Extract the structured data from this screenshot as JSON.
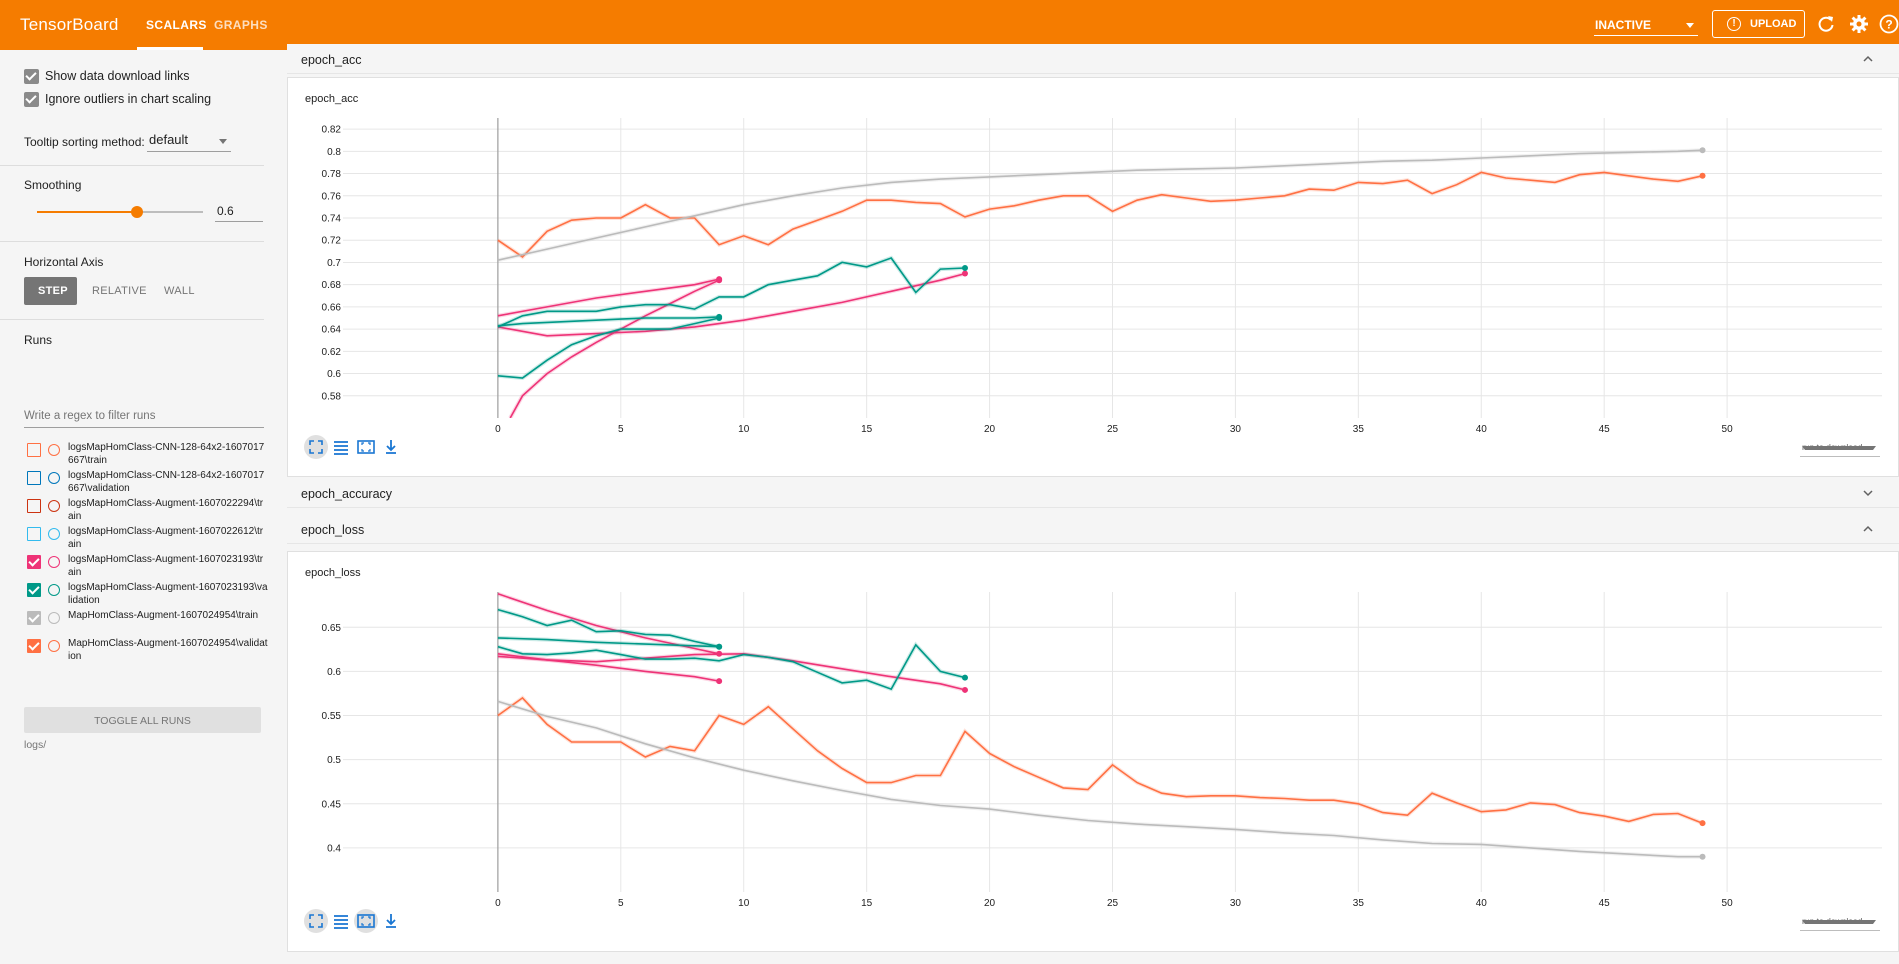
{
  "app": {
    "brand": "TensorBoard",
    "tabs": [
      {
        "label": "SCALARS",
        "active": true
      },
      {
        "label": "GRAPHS",
        "active": false
      }
    ],
    "status": "INACTIVE",
    "upload_label": "UPLOAD",
    "accent_color": "#f57c00",
    "icons": [
      "refresh-icon",
      "settings-icon",
      "help-icon"
    ]
  },
  "sidebar": {
    "show_download_links": {
      "label": "Show data download links",
      "checked": true
    },
    "ignore_outliers": {
      "label": "Ignore outliers in chart scaling",
      "checked": true
    },
    "tooltip_sorting": {
      "label": "Tooltip sorting method:",
      "value": "default"
    },
    "smoothing": {
      "title": "Smoothing",
      "value": "0.6",
      "fraction": 0.6
    },
    "horizontal_axis": {
      "title": "Horizontal Axis",
      "options": [
        "STEP",
        "RELATIVE",
        "WALL"
      ],
      "selected": "STEP"
    },
    "runs": {
      "title": "Runs",
      "filter_placeholder": "Write a regex to filter runs",
      "items": [
        {
          "name": "logsMapHomClass-CNN-128-64x2-1607017667\\train",
          "checked": false,
          "color": "#ff7043"
        },
        {
          "name": "logsMapHomClass-CNN-128-64x2-1607017667\\validation",
          "checked": false,
          "color": "#0077bb"
        },
        {
          "name": "logsMapHomClass-Augment-1607022294\\train",
          "checked": false,
          "color": "#cc3311"
        },
        {
          "name": "logsMapHomClass-Augment-1607022612\\train",
          "checked": false,
          "color": "#33bbee"
        },
        {
          "name": "logsMapHomClass-Augment-1607023193\\train",
          "checked": true,
          "color": "#ee3377"
        },
        {
          "name": "logsMapHomClass-Augment-1607023193\\validation",
          "checked": true,
          "color": "#009988"
        },
        {
          "name": "MapHomClass-Augment-1607024954\\train",
          "checked": true,
          "color": "#bbbbbb"
        },
        {
          "name": "MapHomClass-Augment-1607024954\\validation",
          "checked": true,
          "color": "#ff7043"
        }
      ],
      "toggle_all_label": "TOGGLE ALL RUNS",
      "logdir": "logs/"
    }
  },
  "groups": [
    {
      "title": "epoch_acc",
      "expanded": true
    },
    {
      "title": "epoch_accuracy",
      "expanded": false
    },
    {
      "title": "epoch_loss",
      "expanded": true
    }
  ],
  "run_to_download": "run to download",
  "chart_data": [
    {
      "type": "line",
      "title": "epoch_acc",
      "xticks": [
        0,
        5,
        10,
        15,
        20,
        25,
        30,
        35,
        40,
        45,
        50
      ],
      "yticks": [
        0.58,
        0.6,
        0.62,
        0.64,
        0.66,
        0.68,
        0.7,
        0.72,
        0.74,
        0.76,
        0.78,
        0.8,
        0.82
      ],
      "xlim": [
        -6.3,
        56.3
      ],
      "ylim": [
        0.56,
        0.83
      ],
      "series": [
        {
          "color": "#ff7043",
          "x": [
            0,
            1,
            2,
            3,
            4,
            5,
            6,
            7,
            8,
            9,
            10,
            11,
            12,
            13,
            14,
            15,
            16,
            17,
            18,
            19,
            20,
            21,
            22,
            23,
            24,
            25,
            26,
            27,
            28,
            29,
            30,
            31,
            32,
            33,
            34,
            35,
            36,
            37,
            38,
            39,
            40,
            41,
            42,
            43,
            44,
            45,
            46,
            47,
            48,
            49
          ],
          "y": [
            0.72,
            0.705,
            0.728,
            0.738,
            0.74,
            0.74,
            0.752,
            0.74,
            0.74,
            0.716,
            0.724,
            0.716,
            0.73,
            0.738,
            0.746,
            0.756,
            0.756,
            0.754,
            0.753,
            0.741,
            0.748,
            0.751,
            0.756,
            0.76,
            0.76,
            0.746,
            0.756,
            0.761,
            0.758,
            0.755,
            0.756,
            0.758,
            0.76,
            0.766,
            0.765,
            0.772,
            0.771,
            0.774,
            0.762,
            0.77,
            0.781,
            0.776,
            0.774,
            0.772,
            0.779,
            0.781,
            0.778,
            0.775,
            0.773,
            0.778
          ]
        },
        {
          "color": "#bbbbbb",
          "x": [
            0,
            2,
            4,
            6,
            8,
            10,
            12,
            14,
            16,
            18,
            20,
            22,
            24,
            26,
            28,
            30,
            32,
            34,
            36,
            38,
            40,
            42,
            44,
            46,
            48,
            49
          ],
          "y": [
            0.702,
            0.712,
            0.722,
            0.732,
            0.742,
            0.752,
            0.76,
            0.767,
            0.772,
            0.775,
            0.777,
            0.779,
            0.781,
            0.783,
            0.784,
            0.785,
            0.787,
            0.789,
            0.791,
            0.792,
            0.794,
            0.796,
            0.798,
            0.799,
            0.8,
            0.801
          ]
        },
        {
          "color": "#ee3377",
          "x": [
            0,
            2,
            4,
            6,
            8,
            10,
            12,
            14,
            16,
            18,
            19
          ],
          "y": [
            0.642,
            0.634,
            0.636,
            0.638,
            0.642,
            0.648,
            0.656,
            0.664,
            0.674,
            0.684,
            0.69
          ]
        },
        {
          "color": "#ee3377",
          "x": [
            0,
            2,
            4,
            6,
            8,
            9
          ],
          "y": [
            0.652,
            0.66,
            0.668,
            0.674,
            0.68,
            0.685
          ]
        },
        {
          "color": "#ee3377",
          "x": [
            0.5,
            1,
            2,
            3,
            4,
            5,
            6,
            7,
            8,
            9
          ],
          "y": [
            0.56,
            0.58,
            0.6,
            0.615,
            0.628,
            0.64,
            0.652,
            0.663,
            0.674,
            0.684
          ]
        },
        {
          "color": "#009988",
          "x": [
            0,
            1,
            2,
            3,
            4,
            5,
            6,
            7,
            8,
            9,
            10,
            11,
            12,
            13,
            14,
            15,
            16,
            17,
            18,
            19
          ],
          "y": [
            0.642,
            0.652,
            0.656,
            0.656,
            0.656,
            0.66,
            0.662,
            0.662,
            0.658,
            0.669,
            0.669,
            0.68,
            0.684,
            0.688,
            0.7,
            0.696,
            0.704,
            0.673,
            0.694,
            0.695
          ]
        },
        {
          "color": "#009988",
          "x": [
            0,
            1,
            2,
            3,
            4,
            5,
            6,
            7,
            8,
            9
          ],
          "y": [
            0.598,
            0.596,
            0.612,
            0.626,
            0.634,
            0.64,
            0.64,
            0.64,
            0.645,
            0.65
          ]
        },
        {
          "color": "#009988",
          "x": [
            0,
            1,
            2,
            3,
            4,
            5,
            6,
            7,
            8,
            9
          ],
          "y": [
            0.643,
            0.645,
            0.646,
            0.647,
            0.648,
            0.649,
            0.65,
            0.65,
            0.65,
            0.651
          ]
        }
      ]
    },
    {
      "type": "line",
      "title": "epoch_loss",
      "xticks": [
        0,
        5,
        10,
        15,
        20,
        25,
        30,
        35,
        40,
        45,
        50
      ],
      "yticks": [
        0.4,
        0.45,
        0.5,
        0.55,
        0.6,
        0.65
      ],
      "xlim": [
        -6.3,
        56.3
      ],
      "ylim": [
        0.35,
        0.69
      ],
      "series": [
        {
          "color": "#ff7043",
          "x": [
            0,
            1,
            2,
            3,
            4,
            5,
            6,
            7,
            8,
            9,
            10,
            11,
            12,
            13,
            14,
            15,
            16,
            17,
            18,
            19,
            20,
            21,
            22,
            23,
            24,
            25,
            26,
            27,
            28,
            29,
            30,
            31,
            32,
            33,
            34,
            35,
            36,
            37,
            38,
            39,
            40,
            41,
            42,
            43,
            44,
            45,
            46,
            47,
            48,
            49
          ],
          "y": [
            0.55,
            0.57,
            0.54,
            0.52,
            0.52,
            0.52,
            0.503,
            0.515,
            0.51,
            0.55,
            0.54,
            0.56,
            0.535,
            0.51,
            0.49,
            0.474,
            0.474,
            0.482,
            0.482,
            0.532,
            0.507,
            0.492,
            0.48,
            0.468,
            0.466,
            0.494,
            0.474,
            0.462,
            0.458,
            0.459,
            0.459,
            0.457,
            0.456,
            0.454,
            0.454,
            0.45,
            0.44,
            0.437,
            0.462,
            0.451,
            0.441,
            0.443,
            0.451,
            0.449,
            0.44,
            0.436,
            0.43,
            0.438,
            0.439,
            0.428
          ]
        },
        {
          "color": "#bbbbbb",
          "x": [
            0,
            2,
            4,
            6,
            8,
            10,
            12,
            14,
            16,
            18,
            20,
            22,
            24,
            26,
            28,
            30,
            32,
            34,
            36,
            38,
            40,
            42,
            44,
            46,
            48,
            49
          ],
          "y": [
            0.566,
            0.549,
            0.536,
            0.518,
            0.502,
            0.488,
            0.476,
            0.465,
            0.455,
            0.448,
            0.444,
            0.437,
            0.431,
            0.427,
            0.424,
            0.421,
            0.417,
            0.414,
            0.409,
            0.405,
            0.404,
            0.4,
            0.396,
            0.393,
            0.39,
            0.39
          ]
        },
        {
          "color": "#ee3377",
          "x": [
            0,
            2,
            4,
            6,
            8,
            10,
            12,
            14,
            16,
            18,
            19
          ],
          "y": [
            0.617,
            0.613,
            0.611,
            0.615,
            0.619,
            0.62,
            0.612,
            0.603,
            0.594,
            0.586,
            0.579
          ]
        },
        {
          "color": "#ee3377",
          "x": [
            0,
            2,
            4,
            6,
            8,
            9
          ],
          "y": [
            0.688,
            0.669,
            0.652,
            0.638,
            0.626,
            0.62
          ]
        },
        {
          "color": "#ee3377",
          "x": [
            0,
            2,
            4,
            6,
            8,
            9
          ],
          "y": [
            0.62,
            0.613,
            0.607,
            0.6,
            0.594,
            0.589
          ]
        },
        {
          "color": "#009988",
          "x": [
            0,
            1,
            2,
            3,
            4,
            5,
            6,
            7,
            8,
            9,
            10,
            11,
            12,
            13,
            14,
            15,
            16,
            17,
            18,
            19
          ],
          "y": [
            0.628,
            0.62,
            0.619,
            0.621,
            0.624,
            0.619,
            0.614,
            0.614,
            0.615,
            0.612,
            0.619,
            0.616,
            0.611,
            0.599,
            0.587,
            0.59,
            0.58,
            0.63,
            0.6,
            0.593
          ]
        },
        {
          "color": "#009988",
          "x": [
            0,
            1,
            2,
            3,
            4,
            5,
            6,
            7,
            8,
            9
          ],
          "y": [
            0.67,
            0.662,
            0.652,
            0.658,
            0.645,
            0.646,
            0.642,
            0.641,
            0.634,
            0.628
          ]
        },
        {
          "color": "#009988",
          "x": [
            0,
            2,
            4,
            6,
            8,
            9
          ],
          "y": [
            0.638,
            0.636,
            0.633,
            0.631,
            0.629,
            0.628
          ]
        }
      ]
    }
  ]
}
